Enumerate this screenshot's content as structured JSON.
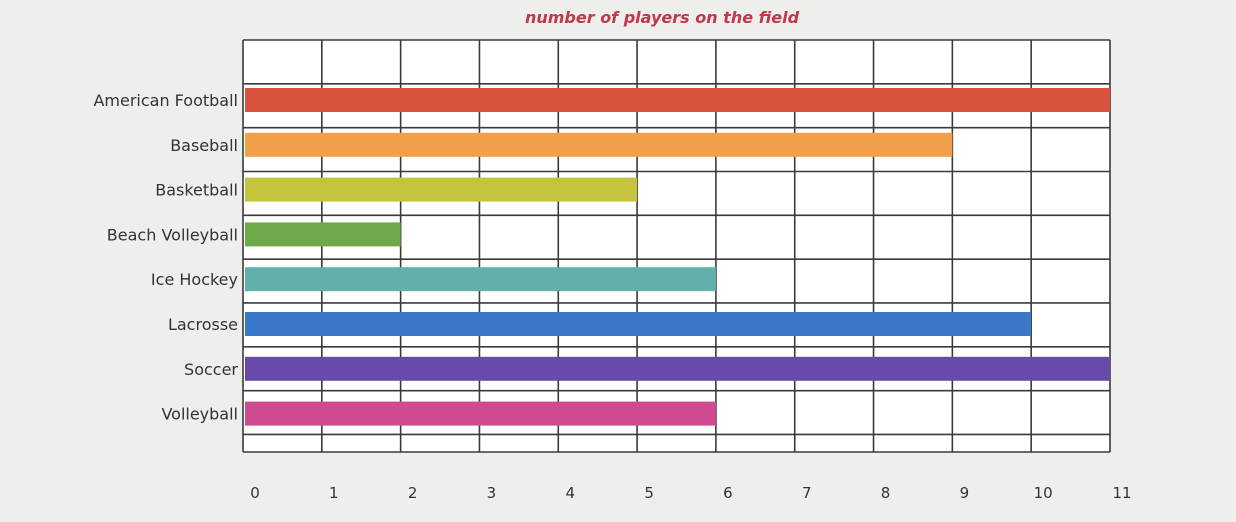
{
  "chart_data": {
    "type": "bar",
    "orientation": "horizontal",
    "title": "number of players on the field",
    "categories": [
      "American Football",
      "Baseball",
      "Basketball",
      "Beach Volleyball",
      "Ice Hockey",
      "Lacrosse",
      "Soccer",
      "Volleyball"
    ],
    "values": [
      11,
      9,
      5,
      2,
      6,
      10,
      11,
      6
    ],
    "colors": [
      "#d9533e",
      "#f0a048",
      "#c4c43c",
      "#6ea84a",
      "#62b0ac",
      "#3c78c8",
      "#6a4aa8",
      "#d04a90"
    ],
    "xlim": [
      0,
      11
    ],
    "x_ticks": [
      "0",
      "1",
      "2",
      "3",
      "4",
      "5",
      "6",
      "7",
      "8",
      "9",
      "10",
      "11"
    ],
    "grid": true,
    "title_color": "#c0384a"
  }
}
